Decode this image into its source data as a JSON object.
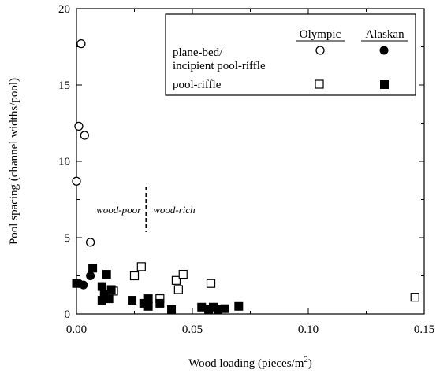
{
  "chart_data": {
    "type": "scatter",
    "xlabel": "Wood loading (pieces/m",
    "xlabel_sup": "2",
    "xlabel_end": ")",
    "ylabel": "Pool spacing (channel widths/pool)",
    "xlim": [
      0.0,
      0.15
    ],
    "ylim": [
      0,
      20
    ],
    "x_ticks": [
      0.0,
      0.05,
      0.1,
      0.15
    ],
    "x_tick_labels": [
      "0.00",
      "0.05",
      "0.10",
      "0.15"
    ],
    "y_ticks": [
      0,
      5,
      10,
      15,
      20
    ],
    "y_tick_labels": [
      "0",
      "5",
      "10",
      "15",
      "20"
    ],
    "legend": {
      "placement": "top-right",
      "column_headers": [
        "Olympic",
        "Alaskan"
      ],
      "rows": [
        {
          "label_lines": [
            "plane-bed/",
            "incipient pool-riffle"
          ]
        },
        {
          "label_lines": [
            "pool-riffle"
          ]
        }
      ]
    },
    "annotations": {
      "divider_x": 0.03,
      "left_label": "wood-poor",
      "right_label": "wood-rich"
    },
    "series": [
      {
        "name": "Olympic plane-bed/incipient pool-riffle",
        "marker": "open-circle",
        "points": [
          [
            0.0,
            8.7
          ],
          [
            0.001,
            12.3
          ],
          [
            0.002,
            17.7
          ],
          [
            0.0035,
            11.7
          ],
          [
            0.006,
            4.7
          ]
        ]
      },
      {
        "name": "Alaskan plane-bed/incipient pool-riffle",
        "marker": "filled-circle",
        "points": [
          [
            0.001,
            2.0
          ],
          [
            0.003,
            1.9
          ],
          [
            0.006,
            2.5
          ]
        ]
      },
      {
        "name": "Olympic pool-riffle",
        "marker": "open-square",
        "points": [
          [
            0.016,
            1.5
          ],
          [
            0.025,
            2.5
          ],
          [
            0.028,
            3.1
          ],
          [
            0.036,
            1.0
          ],
          [
            0.043,
            2.2
          ],
          [
            0.044,
            1.6
          ],
          [
            0.046,
            2.6
          ],
          [
            0.058,
            2.0
          ],
          [
            0.146,
            1.1
          ]
        ]
      },
      {
        "name": "Alaskan pool-riffle",
        "marker": "filled-square",
        "points": [
          [
            0.0,
            2.0
          ],
          [
            0.007,
            3.0
          ],
          [
            0.011,
            1.8
          ],
          [
            0.011,
            0.9
          ],
          [
            0.012,
            1.3
          ],
          [
            0.013,
            2.6
          ],
          [
            0.014,
            1.0
          ],
          [
            0.015,
            1.6
          ],
          [
            0.024,
            0.9
          ],
          [
            0.029,
            0.7
          ],
          [
            0.031,
            1.0
          ],
          [
            0.031,
            0.5
          ],
          [
            0.036,
            0.7
          ],
          [
            0.041,
            0.3
          ],
          [
            0.054,
            0.45
          ],
          [
            0.057,
            0.3
          ],
          [
            0.059,
            0.45
          ],
          [
            0.061,
            0.3
          ],
          [
            0.064,
            0.35
          ],
          [
            0.07,
            0.5
          ]
        ]
      }
    ]
  }
}
